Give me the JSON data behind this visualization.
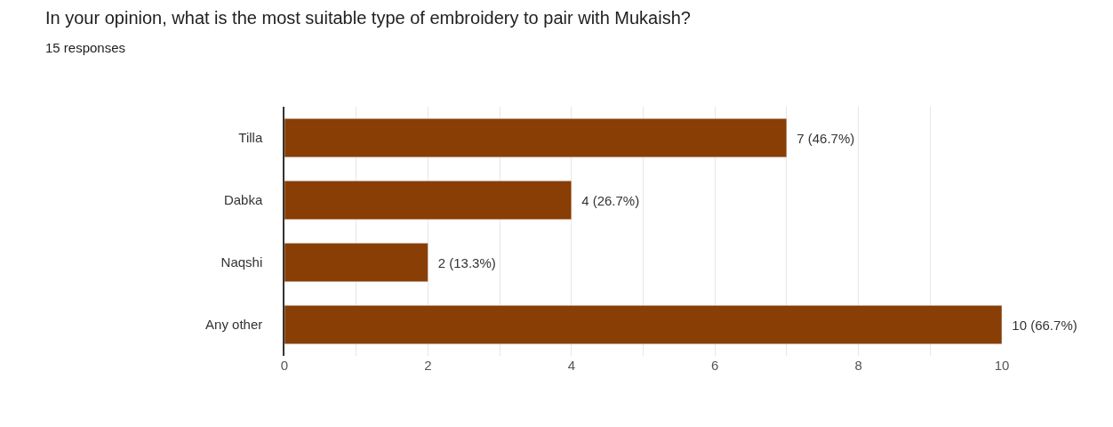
{
  "chart_data": {
    "type": "bar",
    "orientation": "horizontal",
    "title": "In your opinion, what is the most suitable type of embroidery to pair with Mukaish?",
    "subtitle": "15 responses",
    "categories": [
      "Tilla",
      "Dabka",
      "Naqshi",
      "Any other"
    ],
    "values": [
      7,
      4,
      2,
      10
    ],
    "value_labels": [
      "7 (46.7%)",
      "4 (26.7%)",
      "2 (13.3%)",
      "10 (66.7%)"
    ],
    "color": "#883e04",
    "xlim": [
      0,
      10
    ],
    "xticks": [
      0,
      {
        "value": 1,
        "label": null
      },
      2,
      {
        "value": 3,
        "label": null
      },
      4,
      {
        "value": 5,
        "label": null
      },
      6,
      {
        "value": 7,
        "label": null
      },
      8,
      {
        "value": 9,
        "label": null
      },
      10
    ],
    "grid": "x",
    "legend": false
  }
}
